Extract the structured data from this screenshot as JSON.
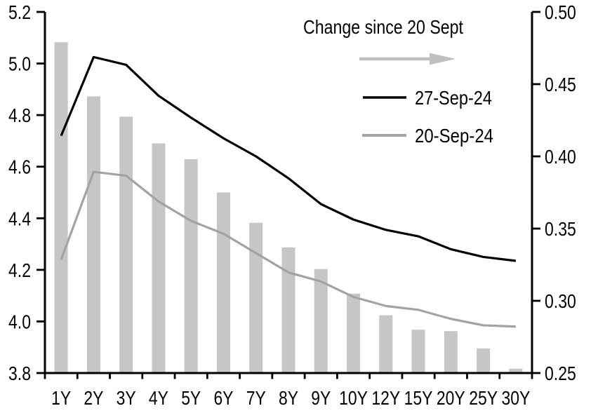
{
  "chart_data": {
    "type": "combo_bar_line",
    "categories": [
      "1Y",
      "2Y",
      "3Y",
      "4Y",
      "5Y",
      "6Y",
      "7Y",
      "8Y",
      "9Y",
      "10Y",
      "12Y",
      "15Y",
      "20Y",
      "25Y",
      "30Y"
    ],
    "series": [
      {
        "name": "Change since 20 Sept",
        "type": "bar",
        "axis": "right",
        "values": [
          0.479,
          0.4415,
          0.4275,
          0.409,
          0.398,
          0.375,
          0.354,
          0.337,
          0.322,
          0.305,
          0.29,
          0.28,
          0.279,
          0.267,
          0.253
        ]
      },
      {
        "name": "27-Sep-24",
        "type": "line",
        "axis": "left",
        "values": [
          4.72,
          5.025,
          4.995,
          4.875,
          4.79,
          4.71,
          4.64,
          4.555,
          4.455,
          4.395,
          4.355,
          4.33,
          4.28,
          4.25,
          4.235
        ]
      },
      {
        "name": "20-Sep-24",
        "type": "line",
        "axis": "left",
        "values": [
          4.24,
          4.58,
          4.565,
          4.465,
          4.39,
          4.34,
          4.265,
          4.19,
          4.155,
          4.095,
          4.06,
          4.045,
          4.01,
          3.985,
          3.98
        ]
      }
    ],
    "left_axis": {
      "min": 3.8,
      "max": 5.2,
      "step": 0.2,
      "tick_labels": [
        "5.2",
        "5.0",
        "4.8",
        "4.6",
        "4.4",
        "4.2",
        "4.0",
        "3.8"
      ]
    },
    "right_axis": {
      "min": 0.25,
      "max": 0.5,
      "step": 0.05,
      "tick_labels": [
        "0.50",
        "0.45",
        "0.40",
        "0.35",
        "0.30",
        "0.25"
      ]
    },
    "legend": {
      "title": "Change since 20 Sept",
      "arrow_icon": "right-arrow",
      "entries": [
        {
          "label": "27-Sep-24"
        },
        {
          "label": "20-Sep-24"
        }
      ]
    },
    "colors": {
      "bar": "#c6c6c6",
      "line_27_sep": "#000000",
      "line_20_sep": "#a3a3a3",
      "arrow": "#bfbfbf",
      "axis": "#000000"
    },
    "grid": false,
    "legend_position": "top-center"
  }
}
